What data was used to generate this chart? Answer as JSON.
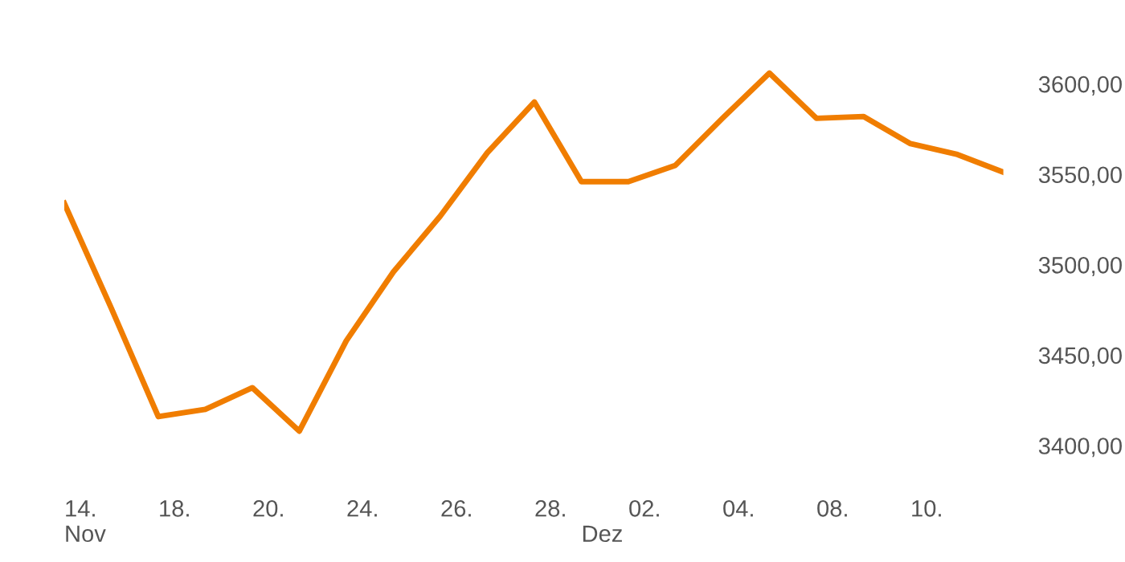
{
  "chart_data": {
    "type": "line",
    "categories": [
      "14.\nNov",
      null,
      "18.",
      null,
      "20.",
      null,
      "24.",
      null,
      "26.",
      null,
      "28.",
      "\nDez",
      "02.",
      null,
      "04.",
      null,
      "08.",
      null,
      "10.",
      null,
      null
    ],
    "series": [
      {
        "color": "#f07d00",
        "values": [
          3534,
          3476,
          3416,
          3420,
          3432,
          3408,
          3458,
          3496,
          3527,
          3562,
          3590,
          3546,
          3546,
          3555,
          3581,
          3606,
          3581,
          3582,
          3567,
          3561,
          3551
        ]
      }
    ],
    "ylim": [
      3380,
      3642
    ],
    "yticks": [
      {
        "value": 3400,
        "label": "3400,00"
      },
      {
        "value": 3450,
        "label": "3450,00"
      },
      {
        "value": 3500,
        "label": "3500,00"
      },
      {
        "value": 3550,
        "label": "3550,00"
      },
      {
        "value": 3600,
        "label": "3600,00"
      }
    ],
    "grid": false,
    "legend": false,
    "marker": "none",
    "line_style": "solid"
  }
}
